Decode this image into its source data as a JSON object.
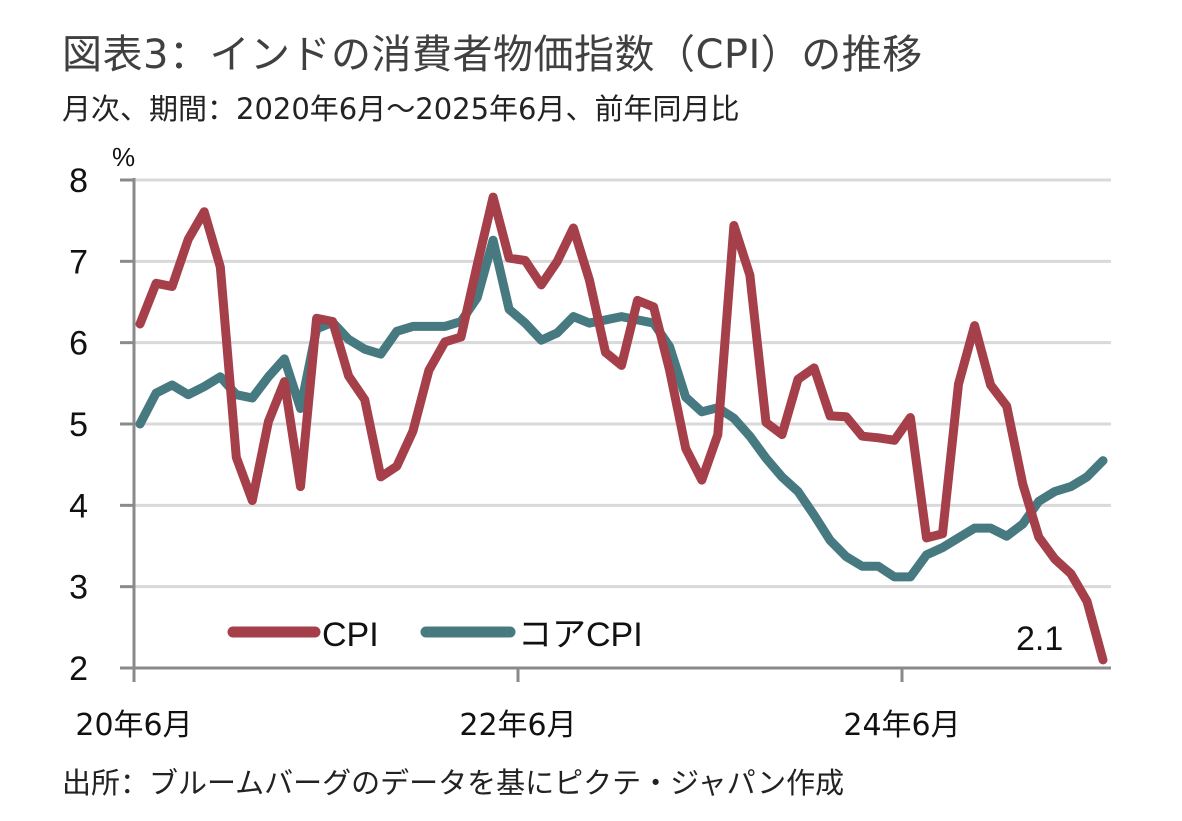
{
  "header": {
    "title": "図表3：インドの消費者物価指数（CPI）の推移",
    "subtitle": "月次、期間：2020年6月～2025年6月、前年同月比"
  },
  "footer": {
    "source": "出所：ブルームバーグのデータを基にピクテ・ジャパン作成"
  },
  "chart_data": {
    "type": "line",
    "title": "図表3：インドの消費者物価指数（CPI）の推移",
    "subtitle": "月次、期間：2020年6月～2025年6月、前年同月比",
    "ylabel": "%",
    "xlabel": "",
    "ylim": [
      2,
      8
    ],
    "yticks": [
      "2",
      "3",
      "4",
      "5",
      "6",
      "7",
      "8"
    ],
    "ytick_values": [
      2,
      3,
      4,
      5,
      6,
      7,
      8
    ],
    "x_start": "2020-06",
    "x_end": "2025-06",
    "frequency": "monthly",
    "xticks": [
      {
        "label": "20年6月",
        "index": 0
      },
      {
        "label": "22年6月",
        "index": 24
      },
      {
        "label": "24年6月",
        "index": 48
      }
    ],
    "grid": true,
    "legend_position": "bottom-left",
    "series": [
      {
        "name": "CPI",
        "color": "#a5404a",
        "values": [
          6.23,
          6.73,
          6.69,
          7.27,
          7.61,
          6.93,
          4.59,
          4.06,
          5.03,
          5.52,
          4.23,
          6.3,
          6.26,
          5.59,
          5.3,
          4.35,
          4.48,
          4.91,
          5.66,
          6.01,
          6.07,
          6.95,
          7.79,
          7.04,
          7.01,
          6.71,
          7.0,
          7.41,
          6.77,
          5.88,
          5.72,
          6.52,
          6.44,
          5.66,
          4.7,
          4.31,
          4.87,
          7.44,
          6.83,
          5.02,
          4.87,
          5.55,
          5.69,
          5.1,
          5.09,
          4.85,
          4.83,
          4.8,
          5.08,
          3.6,
          3.65,
          5.49,
          6.21,
          5.48,
          5.22,
          4.26,
          3.61,
          3.34,
          3.16,
          2.82,
          2.1
        ]
      },
      {
        "name": "コアCPI",
        "color": "#467a80",
        "values": [
          5.0,
          5.38,
          5.48,
          5.36,
          5.46,
          5.58,
          5.36,
          5.32,
          5.58,
          5.8,
          5.19,
          6.17,
          6.25,
          6.04,
          5.92,
          5.86,
          6.14,
          6.2,
          6.2,
          6.2,
          6.26,
          6.55,
          7.26,
          6.41,
          6.24,
          6.03,
          6.12,
          6.32,
          6.24,
          6.28,
          6.32,
          6.28,
          6.24,
          5.95,
          5.33,
          5.15,
          5.2,
          5.07,
          4.85,
          4.58,
          4.35,
          4.17,
          3.88,
          3.57,
          3.37,
          3.25,
          3.25,
          3.12,
          3.12,
          3.39,
          3.48,
          3.6,
          3.72,
          3.72,
          3.62,
          3.77,
          4.05,
          4.17,
          4.23,
          4.35,
          4.55
        ]
      }
    ],
    "annotations": [
      {
        "text": "2.1",
        "series": "CPI",
        "index": 60
      }
    ]
  }
}
